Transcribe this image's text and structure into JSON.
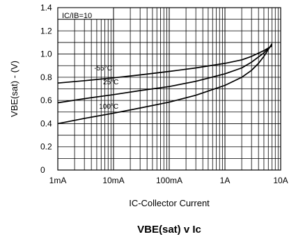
{
  "chart_data": {
    "type": "line",
    "title": "VBE(sat) v Ic",
    "xlabel": "IC-Collector Current",
    "ylabel": "VBE(sat) - (V)",
    "x_scale": "log",
    "x_ticks": [
      0.001,
      0.01,
      0.1,
      1,
      10
    ],
    "x_tick_labels": [
      "1mA",
      "10mA",
      "100mA",
      "1A",
      "10A"
    ],
    "xlim": [
      0.001,
      10
    ],
    "ylim": [
      0,
      1.4
    ],
    "y_ticks": [
      0,
      0.2,
      0.4,
      0.6,
      0.8,
      1.0,
      1.2,
      1.4
    ],
    "y_tick_labels": [
      "0",
      "0.2",
      "0.4",
      "0.6",
      "0.8",
      "1.0",
      "1.2",
      "1.4"
    ],
    "grid": true,
    "annotation": "IC/IB=10",
    "series": [
      {
        "name": "-55°C",
        "label_at": [
          0.0045,
          0.86
        ],
        "x": [
          0.001,
          0.003,
          0.01,
          0.03,
          0.1,
          0.3,
          1,
          2,
          3,
          5,
          7
        ],
        "y": [
          0.75,
          0.77,
          0.795,
          0.82,
          0.85,
          0.88,
          0.92,
          0.95,
          0.98,
          1.03,
          1.07
        ]
      },
      {
        "name": "25°C",
        "label_at": [
          0.0065,
          0.74
        ],
        "x": [
          0.001,
          0.003,
          0.01,
          0.03,
          0.1,
          0.3,
          1,
          2,
          3,
          5,
          7
        ],
        "y": [
          0.58,
          0.615,
          0.65,
          0.685,
          0.72,
          0.765,
          0.83,
          0.88,
          0.93,
          1.01,
          1.08
        ]
      },
      {
        "name": "100°C",
        "label_at": [
          0.0055,
          0.53
        ],
        "x": [
          0.001,
          0.003,
          0.01,
          0.03,
          0.1,
          0.3,
          1,
          2,
          3,
          4,
          5,
          6,
          7
        ],
        "y": [
          0.4,
          0.445,
          0.49,
          0.535,
          0.585,
          0.645,
          0.73,
          0.8,
          0.86,
          0.92,
          0.98,
          1.04,
          1.09
        ]
      }
    ]
  }
}
